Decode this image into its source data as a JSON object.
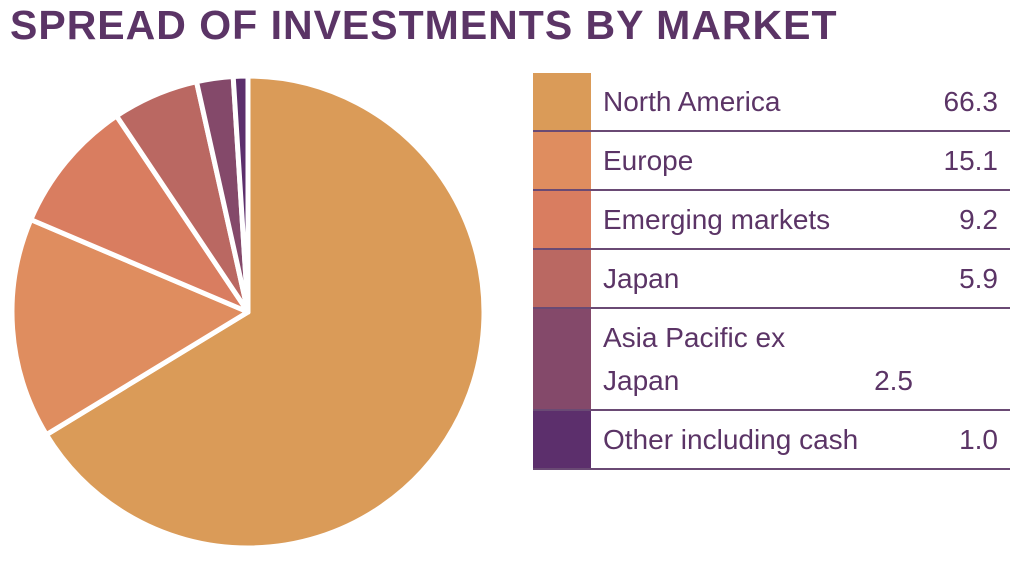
{
  "chart_data": {
    "type": "pie",
    "title": "SPREAD OF INVESTMENTS BY MARKET",
    "categories": [
      "North America",
      "Europe",
      "Emerging markets",
      "Japan",
      "Asia Pacific ex Japan",
      "Other including cash"
    ],
    "values": [
      66.3,
      15.1,
      9.2,
      5.9,
      2.5,
      1.0
    ],
    "value_labels": [
      "66.3",
      "15.1",
      "9.2",
      "5.9",
      "2.5",
      "1.0"
    ],
    "colors": [
      "#da9b58",
      "#df8d5f",
      "#d97d60",
      "#ba6862",
      "#84496a",
      "#5c2f6c"
    ]
  }
}
